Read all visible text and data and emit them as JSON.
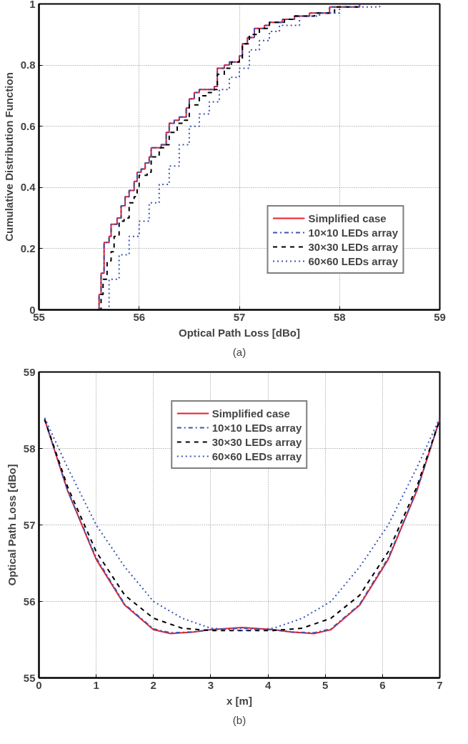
{
  "chart_data": [
    {
      "type": "step",
      "xlabel": "Optical Path Loss [dBo]",
      "ylabel": "Cumulative Distribution Function",
      "annotations": [
        "(a)"
      ],
      "xlim": [
        55,
        59
      ],
      "ylim": [
        0,
        1
      ],
      "xticks": [
        55,
        56,
        57,
        58,
        59
      ],
      "yticks": [
        0,
        0.2,
        0.4,
        0.6,
        0.8,
        1
      ],
      "grid": true,
      "legend": "bottom right",
      "series": [
        {
          "name": "Simplified case",
          "color": "#e8202a",
          "line_style": "solid",
          "x": [
            55.58,
            55.6,
            55.62,
            55.65,
            55.7,
            55.72,
            55.78,
            55.82,
            55.86,
            55.9,
            55.95,
            55.98,
            56.02,
            56.06,
            56.1,
            56.12,
            56.22,
            56.27,
            56.3,
            56.35,
            56.4,
            56.47,
            56.5,
            56.55,
            56.6,
            56.75,
            56.78,
            56.85,
            56.9,
            57.0,
            57.03,
            57.08,
            57.15,
            57.25,
            57.3,
            57.43,
            57.55,
            57.7,
            57.9,
            58.2
          ],
          "values": [
            0,
            0.05,
            0.12,
            0.22,
            0.24,
            0.28,
            0.3,
            0.34,
            0.37,
            0.39,
            0.42,
            0.45,
            0.46,
            0.48,
            0.5,
            0.53,
            0.54,
            0.58,
            0.61,
            0.62,
            0.63,
            0.66,
            0.69,
            0.71,
            0.72,
            0.73,
            0.79,
            0.8,
            0.81,
            0.83,
            0.87,
            0.89,
            0.92,
            0.93,
            0.94,
            0.95,
            0.96,
            0.97,
            0.99,
            1.0
          ]
        },
        {
          "name": "10×10 LEDs array",
          "color": "#3a55b4",
          "line_style": "dashdot",
          "x": [
            55.58,
            55.6,
            55.62,
            55.65,
            55.7,
            55.72,
            55.78,
            55.82,
            55.86,
            55.9,
            55.95,
            55.98,
            56.02,
            56.06,
            56.1,
            56.12,
            56.22,
            56.27,
            56.3,
            56.35,
            56.4,
            56.47,
            56.5,
            56.55,
            56.6,
            56.75,
            56.78,
            56.85,
            56.9,
            57.0,
            57.03,
            57.08,
            57.15,
            57.25,
            57.3,
            57.43,
            57.55,
            57.7,
            57.9,
            58.2
          ],
          "values": [
            0,
            0.05,
            0.12,
            0.22,
            0.24,
            0.28,
            0.3,
            0.34,
            0.37,
            0.39,
            0.42,
            0.45,
            0.46,
            0.48,
            0.5,
            0.53,
            0.54,
            0.58,
            0.61,
            0.62,
            0.63,
            0.66,
            0.69,
            0.71,
            0.72,
            0.73,
            0.79,
            0.8,
            0.81,
            0.83,
            0.87,
            0.89,
            0.92,
            0.93,
            0.94,
            0.95,
            0.96,
            0.97,
            0.99,
            1.0
          ]
        },
        {
          "name": "30×30 LEDs array",
          "color": "#000000",
          "line_style": "dashed",
          "x": [
            55.6,
            55.62,
            55.64,
            55.68,
            55.72,
            55.75,
            55.8,
            55.85,
            55.9,
            55.95,
            55.98,
            56.0,
            56.08,
            56.12,
            56.2,
            56.27,
            56.3,
            56.38,
            56.45,
            56.5,
            56.6,
            56.68,
            56.75,
            56.78,
            56.85,
            56.92,
            57.0,
            57.03,
            57.1,
            57.2,
            57.3,
            57.45,
            57.55,
            57.75,
            57.95,
            58.2
          ],
          "values": [
            0,
            0.05,
            0.1,
            0.16,
            0.19,
            0.24,
            0.29,
            0.3,
            0.35,
            0.37,
            0.4,
            0.44,
            0.45,
            0.5,
            0.53,
            0.54,
            0.58,
            0.61,
            0.62,
            0.67,
            0.7,
            0.71,
            0.72,
            0.77,
            0.79,
            0.81,
            0.82,
            0.87,
            0.9,
            0.92,
            0.94,
            0.95,
            0.96,
            0.97,
            0.99,
            1.0
          ]
        },
        {
          "name": "60×60 LEDs array",
          "color": "#3a55b4",
          "line_style": "dotted",
          "x": [
            55.6,
            55.7,
            55.8,
            55.9,
            56.0,
            56.1,
            56.2,
            56.3,
            56.4,
            56.5,
            56.6,
            56.7,
            56.8,
            56.9,
            57.0,
            57.1,
            57.2,
            57.3,
            57.4,
            57.6,
            57.8,
            58.0,
            58.4
          ],
          "values": [
            0,
            0.1,
            0.18,
            0.24,
            0.29,
            0.35,
            0.41,
            0.47,
            0.54,
            0.6,
            0.64,
            0.68,
            0.72,
            0.76,
            0.79,
            0.85,
            0.88,
            0.91,
            0.93,
            0.96,
            0.97,
            0.99,
            1.0
          ]
        }
      ]
    },
    {
      "type": "line",
      "xlabel": "x [m]",
      "ylabel": "Optical Path Loss [dBo]",
      "annotations": [
        "(b)"
      ],
      "xlim": [
        0,
        7
      ],
      "ylim": [
        55,
        59
      ],
      "xticks": [
        0,
        1,
        2,
        3,
        4,
        5,
        6,
        7
      ],
      "yticks": [
        55,
        56,
        57,
        58,
        59
      ],
      "grid": true,
      "legend": "top",
      "x": [
        0.1,
        0.5,
        1.0,
        1.5,
        2.0,
        2.3,
        2.7,
        3.0,
        3.55,
        4.1,
        4.4,
        4.8,
        5.1,
        5.6,
        6.1,
        6.6,
        7.0
      ],
      "series": [
        {
          "name": "Simplified case",
          "color": "#e8202a",
          "line_style": "solid",
          "values": [
            58.38,
            57.45,
            56.55,
            55.95,
            55.63,
            55.58,
            55.6,
            55.63,
            55.66,
            55.63,
            55.6,
            55.58,
            55.63,
            55.95,
            56.55,
            57.45,
            58.38
          ]
        },
        {
          "name": "10×10 LEDs array",
          "color": "#3a55b4",
          "line_style": "dashdot",
          "values": [
            58.38,
            57.45,
            56.57,
            55.96,
            55.64,
            55.59,
            55.6,
            55.63,
            55.65,
            55.63,
            55.6,
            55.59,
            55.64,
            55.96,
            56.57,
            57.45,
            58.38
          ]
        },
        {
          "name": "30×30 LEDs array",
          "color": "#000000",
          "line_style": "dashed",
          "x": [
            0.1,
            0.5,
            1.0,
            1.5,
            2.0,
            2.5,
            3.0,
            3.55,
            4.1,
            4.6,
            5.1,
            5.6,
            6.1,
            6.6,
            7.0
          ],
          "values": [
            58.38,
            57.5,
            56.65,
            56.08,
            55.78,
            55.65,
            55.62,
            55.62,
            55.62,
            55.65,
            55.78,
            56.08,
            56.65,
            57.5,
            58.38
          ]
        },
        {
          "name": "60×60 LEDs array",
          "color": "#3a55b4",
          "line_style": "dotted",
          "x": [
            0.1,
            0.5,
            1.0,
            1.5,
            2.0,
            2.5,
            3.0,
            3.55,
            4.1,
            4.6,
            5.1,
            5.6,
            6.1,
            6.6,
            7.0
          ],
          "values": [
            58.4,
            57.75,
            57.0,
            56.45,
            56.0,
            55.78,
            55.65,
            55.62,
            55.65,
            55.78,
            56.0,
            56.45,
            57.0,
            57.75,
            58.4
          ]
        }
      ]
    }
  ]
}
